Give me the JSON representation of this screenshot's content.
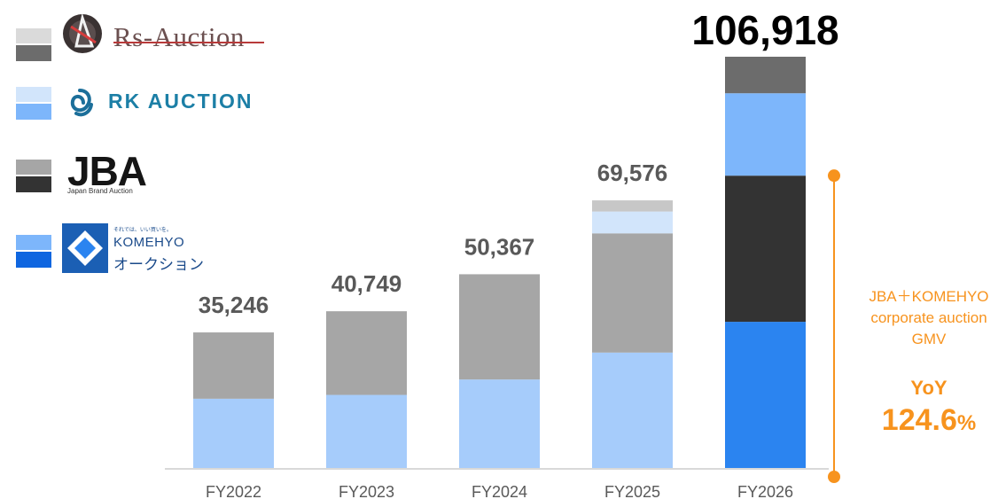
{
  "chart_data": {
    "type": "bar",
    "stacked": true,
    "categories": [
      "FY2022",
      "FY2023",
      "FY2024",
      "FY2025",
      "FY2026"
    ],
    "totals": [
      35246,
      40749,
      50367,
      69576,
      106918
    ],
    "total_labels": [
      "35,246",
      "40,749",
      "50,367",
      "69,576",
      "106,918"
    ],
    "series": [
      {
        "key": "komehyo",
        "values": [
          18000,
          19000,
          23000,
          30000,
          38000
        ],
        "colors": [
          "#a6ccfb",
          "#a6ccfb",
          "#a6ccfb",
          "#a6ccfb",
          "#2b84f0"
        ]
      },
      {
        "key": "jba",
        "values": [
          17246,
          21749,
          27367,
          31000,
          38000
        ],
        "colors": [
          "#a6a6a6",
          "#a6a6a6",
          "#a6a6a6",
          "#a6a6a6",
          "#333333"
        ]
      },
      {
        "key": "rk",
        "values": [
          0,
          0,
          0,
          5676,
          21418
        ],
        "colors": [
          "#d2e5fb",
          "#d2e5fb",
          "#d2e5fb",
          "#d2e5fb",
          "#7db6fb"
        ]
      },
      {
        "key": "rs",
        "values": [
          0,
          0,
          0,
          2900,
          9500
        ],
        "colors": [
          "#c7c7c7",
          "#c7c7c7",
          "#c7c7c7",
          "#c7c7c7",
          "#6c6c6c"
        ]
      }
    ],
    "ylim": [
      0,
      120000
    ],
    "grid": false
  },
  "legend": [
    {
      "key": "rs",
      "light": "#dadada",
      "dark": "#6c6c6c",
      "text": "Rs-Auction"
    },
    {
      "key": "rk",
      "light": "#d2e5fb",
      "dark": "#7db6fb",
      "text": "RK AUCTION"
    },
    {
      "key": "jba",
      "light": "#a6a6a6",
      "dark": "#333333",
      "text": "JBA",
      "subtext": "Japan Brand Auction"
    },
    {
      "key": "komehyo",
      "light": "#7db6fb",
      "dark": "#0f66e0",
      "tagline": "それでは、いい買いを。",
      "text": "KOMEHYO",
      "subtext": "オークション"
    }
  ],
  "annotation": {
    "line1": "JBA＋KOMEHYO",
    "line2": "corporate auction",
    "line3": "GMV",
    "yoy_label": "YoY",
    "yoy_value": "124.6",
    "yoy_unit": "%",
    "color": "#f7931e"
  }
}
